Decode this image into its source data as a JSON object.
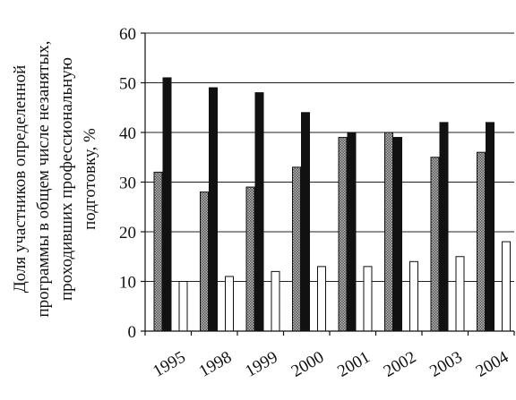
{
  "chart_data": {
    "type": "bar",
    "title": "",
    "xlabel": "",
    "ylabel_lines": [
      "Доля участников определенной",
      "программы в общем числе незанятых,",
      "проходивших профессиональную",
      "подготовку, %"
    ],
    "categories": [
      "1995",
      "1998",
      "1999",
      "2000",
      "2001",
      "2002",
      "2003",
      "2004"
    ],
    "ylim": [
      0,
      60
    ],
    "yticks": [
      "0",
      "10",
      "20",
      "30",
      "40",
      "50",
      "60"
    ],
    "grid": true,
    "legend": "none",
    "series": [
      {
        "color": "#8a8a8a",
        "pattern": "hatch",
        "values": [
          32,
          28,
          29,
          33,
          39,
          40,
          35,
          36
        ]
      },
      {
        "color": "#111111",
        "pattern": "solid",
        "values": [
          51,
          49,
          48,
          44,
          40,
          39,
          42,
          42
        ]
      },
      {
        "color": "#ffffff",
        "pattern": "outline",
        "values": [
          10,
          11,
          12,
          13,
          13,
          14,
          15,
          18
        ]
      }
    ]
  }
}
